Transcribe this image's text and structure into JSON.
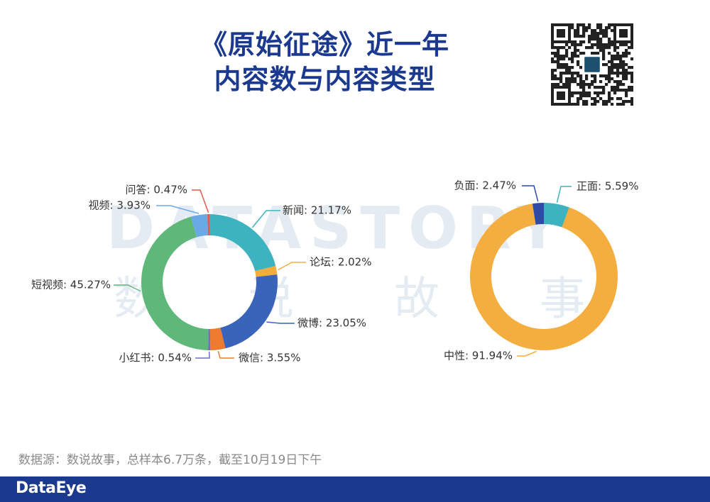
{
  "title_line1": "《原始征途》近一年",
  "title_line2": "内容数与内容类型",
  "watermark_text": "DATASTORY",
  "watermark_chars": [
    "数",
    "说",
    "故",
    "事"
  ],
  "source_text": "数据源：数说故事，总样本6.7万条，截至10月19日下午",
  "footer_brand": "DataEye",
  "colors": {
    "brand": "#1b3a8f",
    "teal": "#3db3bf",
    "orange_light": "#f3ad3f",
    "blue": "#3a64b9",
    "orange_dark": "#ec7a2f",
    "purple": "#6e6ec2",
    "green": "#5fb87a",
    "light_blue": "#6aa8e6",
    "red": "#e8574c",
    "navy": "#2f4ba8",
    "yellow": "#f3ae3f"
  },
  "chart_data": [
    {
      "type": "pie",
      "donut": true,
      "title": "",
      "slices": [
        {
          "name": "新闻",
          "value": 21.17,
          "label": "新闻: 21.17%",
          "color": "#3db3bf"
        },
        {
          "name": "论坛",
          "value": 2.02,
          "label": "论坛: 2.02%",
          "color": "#f3ad3f"
        },
        {
          "name": "微博",
          "value": 23.05,
          "label": "微博: 23.05%",
          "color": "#3a64b9"
        },
        {
          "name": "微信",
          "value": 3.55,
          "label": "微信: 3.55%",
          "color": "#ec7a2f"
        },
        {
          "name": "小红书",
          "value": 0.54,
          "label": "小红书: 0.54%",
          "color": "#6e6ec2"
        },
        {
          "name": "短视频",
          "value": 45.27,
          "label": "短视频: 45.27%",
          "color": "#5fb87a"
        },
        {
          "name": "视频",
          "value": 3.93,
          "label": "视频: 3.93%",
          "color": "#6aa8e6"
        },
        {
          "name": "问答",
          "value": 0.47,
          "label": "问答: 0.47%",
          "color": "#e8574c"
        }
      ]
    },
    {
      "type": "pie",
      "donut": true,
      "title": "",
      "slices": [
        {
          "name": "正面",
          "value": 5.59,
          "label": "正面: 5.59%",
          "color": "#3db3bf"
        },
        {
          "name": "中性",
          "value": 91.94,
          "label": "中性: 91.94%",
          "color": "#f3ae3f"
        },
        {
          "name": "负面",
          "value": 2.47,
          "label": "负面: 2.47%",
          "color": "#2f4ba8"
        }
      ]
    }
  ]
}
